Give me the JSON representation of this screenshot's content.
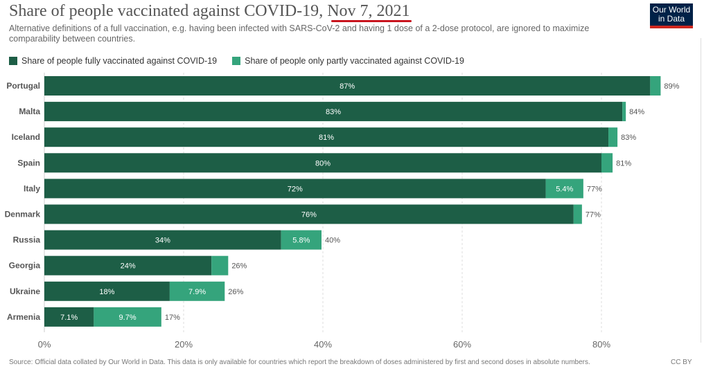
{
  "header": {
    "title_main": "Share of people vaccinated against COVID-19",
    "title_sep": ",",
    "title_date": "Nov 7, 2021",
    "subtitle": "Alternative definitions of a full vaccination, e.g. having been infected with SARS-CoV-2 and having 1 dose of a 2-dose protocol, are ignored to maximize comparability between countries.",
    "logo_line1": "Our World",
    "logo_line2": "in Data"
  },
  "legend": {
    "full_label": "Share of people fully vaccinated against COVID-19",
    "partial_label": "Share of people only partly vaccinated against COVID-19"
  },
  "footer": {
    "source": "Source: Official data collated by Our World in Data. This data is only available for countries which report the breakdown of doses administered by first and second doses in absolute numbers.",
    "license": "CC BY"
  },
  "colors": {
    "full": "#1d5e46",
    "partial": "#35a47c",
    "underline": "#c8141e"
  },
  "chart_data": {
    "type": "bar",
    "orientation": "horizontal",
    "stacked": true,
    "categories": [
      "Portugal",
      "Malta",
      "Iceland",
      "Spain",
      "Italy",
      "Denmark",
      "Russia",
      "Georgia",
      "Ukraine",
      "Armenia"
    ],
    "series": [
      {
        "name": "Share of people fully vaccinated against COVID-19",
        "values": [
          87,
          83,
          81,
          80,
          72,
          76,
          34,
          24,
          18,
          7.1
        ],
        "labels": [
          "87%",
          "83%",
          "81%",
          "80%",
          "72%",
          "76%",
          "34%",
          "24%",
          "18%",
          "7.1%"
        ]
      },
      {
        "name": "Share of people only partly vaccinated against COVID-19",
        "values": [
          1.5,
          0.5,
          1.3,
          1.6,
          5.4,
          1.2,
          5.8,
          2.4,
          7.9,
          9.7
        ],
        "labels": [
          "",
          "",
          "",
          "",
          "5.4%",
          "",
          "5.8%",
          "",
          "7.9%",
          "9.7%"
        ]
      }
    ],
    "totals": [
      "89%",
      "84%",
      "83%",
      "81%",
      "77%",
      "77%",
      "40%",
      "26%",
      "26%",
      "17%"
    ],
    "xlim": [
      0,
      90
    ],
    "xticks": [
      0,
      20,
      40,
      60,
      80
    ],
    "xtick_labels": [
      "0%",
      "20%",
      "40%",
      "60%",
      "80%"
    ],
    "grid": true,
    "legend_position": "top-left"
  }
}
